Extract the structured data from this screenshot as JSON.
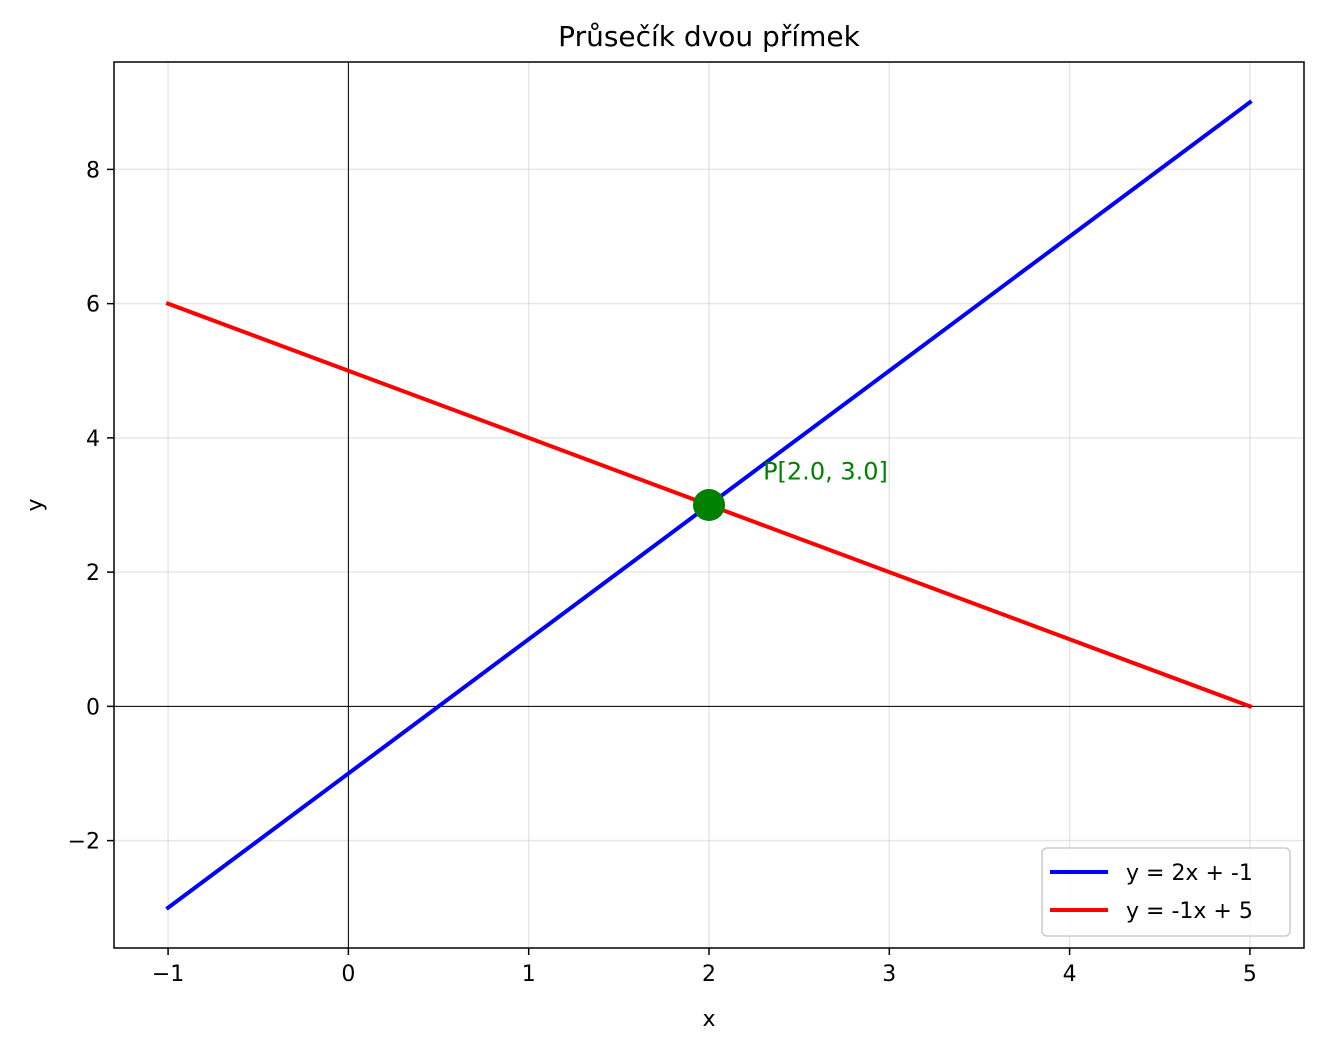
{
  "chart_data": {
    "type": "line",
    "title": "Průsečík dvou přímek",
    "xlabel": "x",
    "ylabel": "y",
    "xlim": [
      -1.3,
      5.3
    ],
    "ylim": [
      -3.6,
      9.6
    ],
    "xticks": [
      -1,
      0,
      1,
      2,
      3,
      4,
      5
    ],
    "xtick_labels": [
      "−1",
      "0",
      "1",
      "2",
      "3",
      "4",
      "5"
    ],
    "yticks": [
      -2,
      0,
      2,
      4,
      6,
      8
    ],
    "ytick_labels": [
      "−2",
      "0",
      "2",
      "4",
      "6",
      "8"
    ],
    "grid": true,
    "reference_lines": {
      "x": 0,
      "y": 0
    },
    "legend_position": "lower-right",
    "series": [
      {
        "name": "y = 2x + -1",
        "color": "#0000ff",
        "x": [
          -1,
          5
        ],
        "y": [
          -3,
          9
        ]
      },
      {
        "name": "y = -1x + 5",
        "color": "#ff0000",
        "x": [
          -1,
          5
        ],
        "y": [
          6,
          0
        ]
      }
    ],
    "intersection": {
      "x": 2.0,
      "y": 3.0,
      "label": "P[2.0, 3.0]",
      "label_x": 2.3,
      "label_y": 3.5,
      "color": "#008000"
    }
  }
}
